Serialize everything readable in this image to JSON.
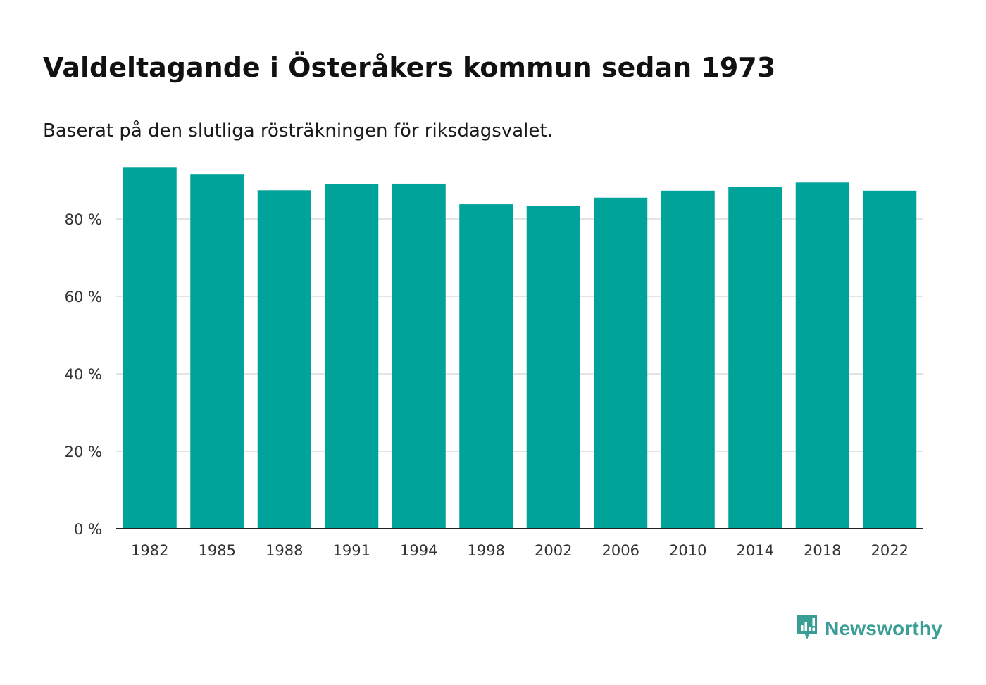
{
  "title": "Valdeltagande i Österåkers kommun sedan 1973",
  "subtitle": "Baserat på den slutliga rösträkningen för riksdagsvalet.",
  "brand": {
    "name": "Newsworthy",
    "icon": "newsworthy-logo-icon",
    "color": "#3a9e96"
  },
  "chart_data": {
    "type": "bar",
    "title": "Valdeltagande i Österåkers kommun sedan 1973",
    "xlabel": "",
    "ylabel": "",
    "categories": [
      "1982",
      "1985",
      "1988",
      "1991",
      "1994",
      "1998",
      "2002",
      "2006",
      "2010",
      "2014",
      "2018",
      "2022"
    ],
    "values": [
      93.4,
      91.6,
      87.4,
      89.0,
      89.1,
      83.8,
      83.4,
      85.5,
      87.3,
      88.3,
      89.4,
      87.3
    ],
    "ylim": [
      0,
      95
    ],
    "yticks": [
      0,
      20,
      40,
      60,
      80
    ],
    "ytick_labels": [
      "0 %",
      "20 %",
      "40 %",
      "60 %",
      "80 %"
    ],
    "grid": true,
    "bar_color": "#00a39a"
  }
}
